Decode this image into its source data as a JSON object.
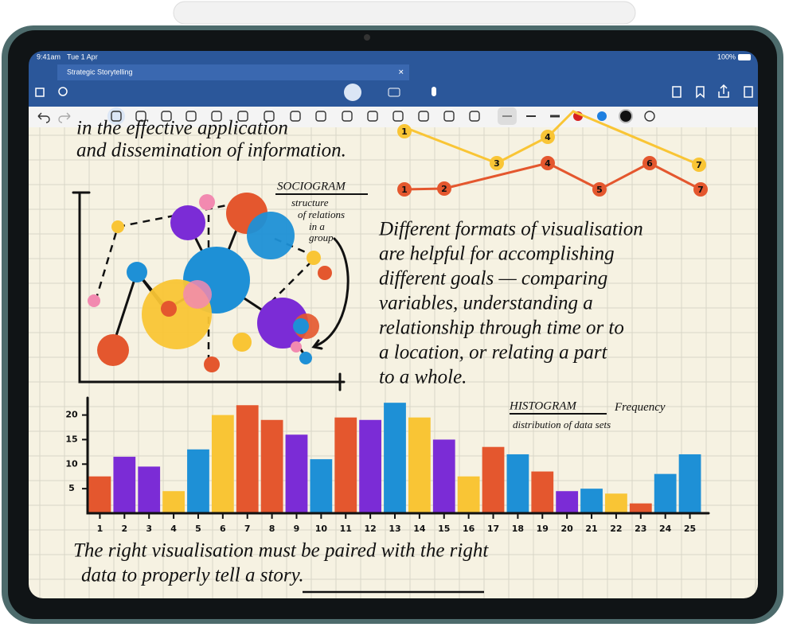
{
  "status_bar": {
    "time": "9:41am",
    "date": "Tue 1 Apr",
    "battery": "100%"
  },
  "tab": {
    "title": "Strategic Storytelling"
  },
  "note": {
    "top_lines": [
      "in the effective application",
      "and dissemination of information."
    ],
    "sociogram_title": "SOCIOGRAM",
    "sociogram_caption": [
      "structure",
      "of relations",
      "in a",
      "group"
    ],
    "paragraph": [
      "Different formats of visualisation",
      "are helpful for accomplishing",
      "different goals — comparing",
      "variables, understanding a",
      "relationship through time or to",
      "a location, or relating a part",
      "to a whole."
    ],
    "bottom_lines": [
      "The right visualisation must be paired with the right",
      "data to properly tell a story."
    ]
  },
  "line_sketch": {
    "orange_labels": [
      "1",
      "2",
      "4",
      "5",
      "6",
      "7"
    ],
    "yellow_labels": [
      "1",
      "3",
      "4",
      "7"
    ]
  },
  "chart_data": {
    "type": "bar",
    "title": "HISTOGRAM",
    "subtitle": "Frequency distribution of data sets",
    "categories": [
      "1",
      "2",
      "3",
      "4",
      "5",
      "6",
      "7",
      "8",
      "9",
      "10",
      "11",
      "12",
      "13",
      "14",
      "15",
      "16",
      "17",
      "18",
      "19",
      "20",
      "21",
      "22",
      "23",
      "24",
      "25"
    ],
    "values": [
      7.5,
      11.5,
      9.5,
      4.5,
      13,
      20,
      22,
      19,
      16,
      11,
      19.5,
      19,
      22.5,
      19.5,
      15,
      7.5,
      13.5,
      12,
      8.5,
      4.5,
      5,
      4,
      2,
      8,
      12
    ],
    "colors": [
      "#e4572e",
      "#7b2cd6",
      "#7b2cd6",
      "#f9c535",
      "#1e90d6",
      "#f9c535",
      "#e4572e",
      "#e4572e",
      "#7b2cd6",
      "#1e90d6",
      "#e4572e",
      "#7b2cd6",
      "#1e90d6",
      "#f9c535",
      "#7b2cd6",
      "#f9c535",
      "#e4572e",
      "#1e90d6",
      "#e4572e",
      "#7b2cd6",
      "#1e90d6",
      "#f9c535",
      "#e4572e",
      "#1e90d6",
      "#1e90d6"
    ],
    "ylim": [
      0,
      23.5
    ],
    "yticks": [
      5,
      10,
      15,
      20
    ]
  }
}
